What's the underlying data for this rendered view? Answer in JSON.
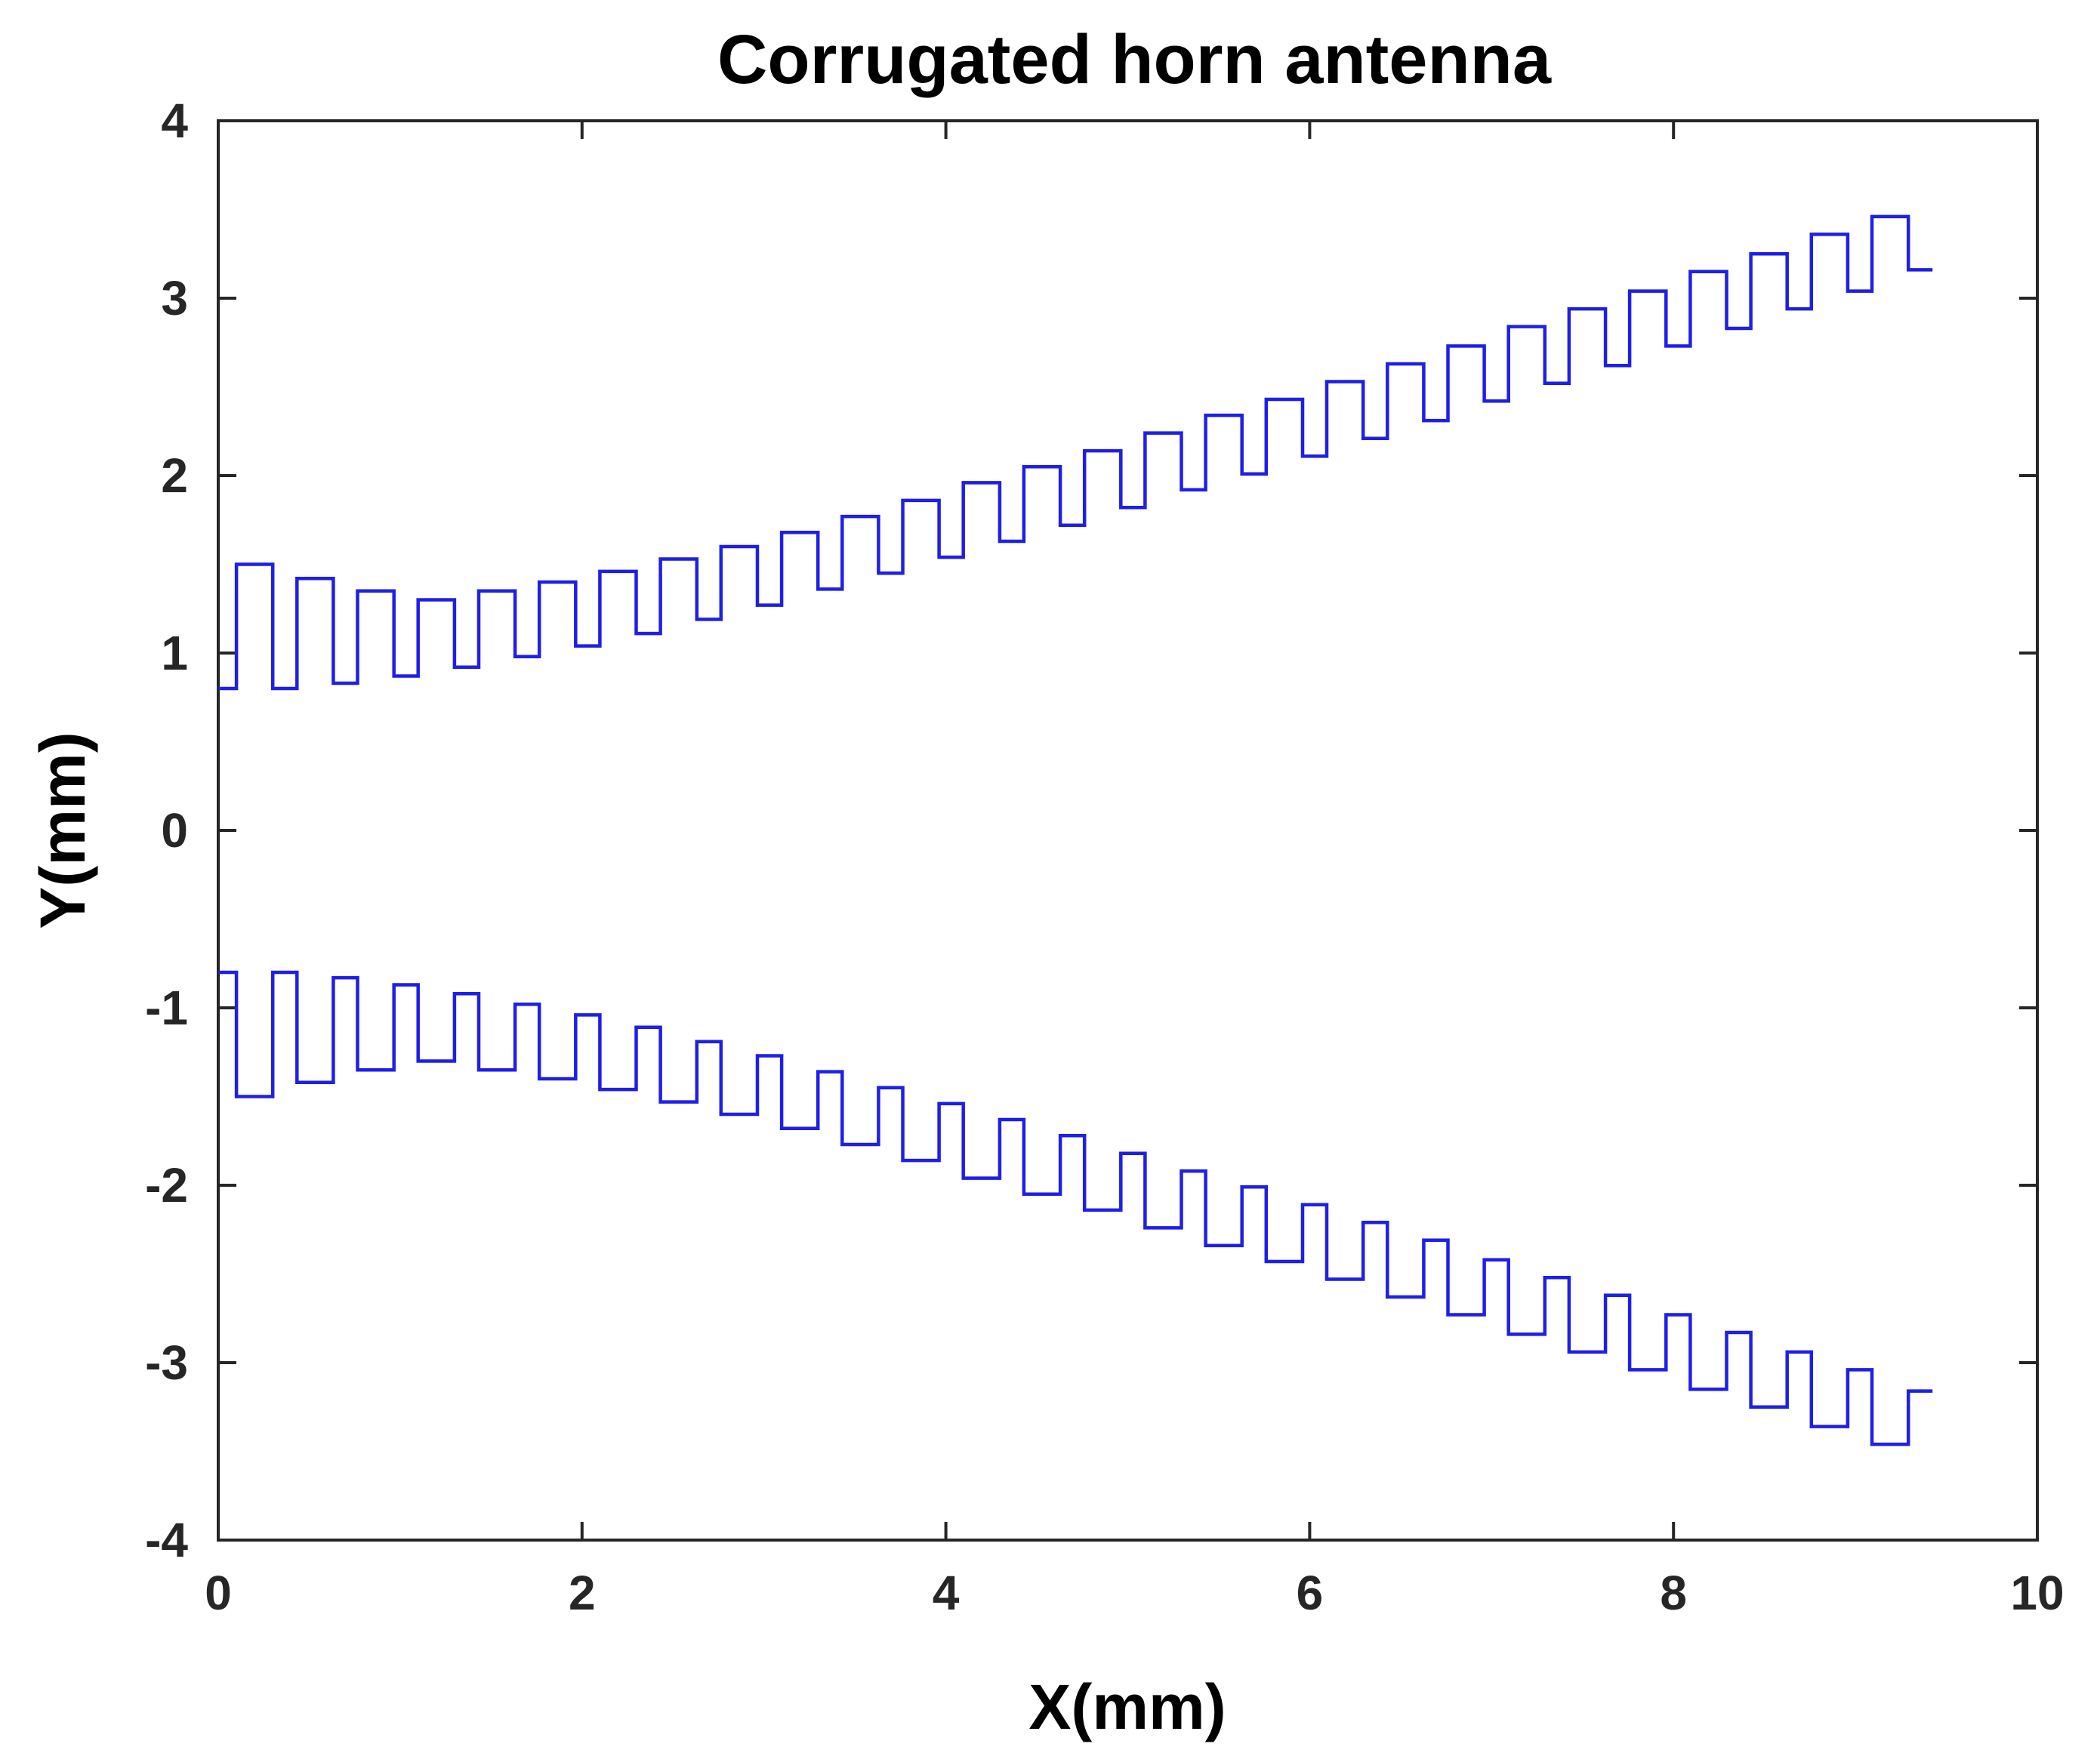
{
  "chart_data": {
    "type": "line",
    "title": "Corrugated horn antenna",
    "xlabel": "X(mm)",
    "ylabel": "Y(mm)",
    "xlim": [
      0,
      10
    ],
    "ylim": [
      -4,
      4
    ],
    "xticks": [
      0,
      2,
      4,
      6,
      8,
      10
    ],
    "yticks": [
      -4,
      -3,
      -2,
      -1,
      0,
      1,
      2,
      3,
      4
    ],
    "xtick_labels": [
      "0",
      "2",
      "4",
      "6",
      "8",
      "10"
    ],
    "ytick_labels": [
      "-4",
      "-3",
      "-2",
      "-1",
      "0",
      "1",
      "2",
      "3",
      "4"
    ],
    "grid": false,
    "line_color": "#1f1fe6",
    "corrugation": {
      "x_start": 0.1,
      "period": 0.333,
      "tooth_fraction": 0.4,
      "count": 28,
      "start_radius": 0.8,
      "x_end": 9.35
    },
    "series": [
      {
        "profile": "upper",
        "valley_radius": [
          0.8,
          0.8,
          0.83,
          0.87,
          0.92,
          0.98,
          1.04,
          1.11,
          1.19,
          1.27,
          1.36,
          1.45,
          1.54,
          1.63,
          1.72,
          1.82,
          1.92,
          2.01,
          2.11,
          2.21,
          2.31,
          2.42,
          2.52,
          2.62,
          2.73,
          2.83,
          2.94,
          3.04,
          3.16
        ],
        "peak_radius": [
          1.5,
          1.42,
          1.35,
          1.3,
          1.35,
          1.4,
          1.46,
          1.53,
          1.6,
          1.68,
          1.77,
          1.86,
          1.96,
          2.05,
          2.14,
          2.24,
          2.34,
          2.43,
          2.53,
          2.63,
          2.73,
          2.84,
          2.94,
          3.04,
          3.15,
          3.25,
          3.36,
          3.46
        ]
      },
      {
        "profile": "lower",
        "valley_radius": [
          -0.8,
          -0.8,
          -0.83,
          -0.87,
          -0.92,
          -0.98,
          -1.04,
          -1.11,
          -1.19,
          -1.27,
          -1.36,
          -1.45,
          -1.54,
          -1.63,
          -1.72,
          -1.82,
          -1.92,
          -2.01,
          -2.11,
          -2.21,
          -2.31,
          -2.42,
          -2.52,
          -2.62,
          -2.73,
          -2.83,
          -2.94,
          -3.04,
          -3.16
        ],
        "peak_radius": [
          -1.5,
          -1.42,
          -1.35,
          -1.3,
          -1.35,
          -1.4,
          -1.46,
          -1.53,
          -1.6,
          -1.68,
          -1.77,
          -1.86,
          -1.96,
          -2.05,
          -2.14,
          -2.24,
          -2.34,
          -2.43,
          -2.53,
          -2.63,
          -2.73,
          -2.84,
          -2.94,
          -3.04,
          -3.15,
          -3.25,
          -3.36,
          -3.46
        ]
      }
    ]
  }
}
